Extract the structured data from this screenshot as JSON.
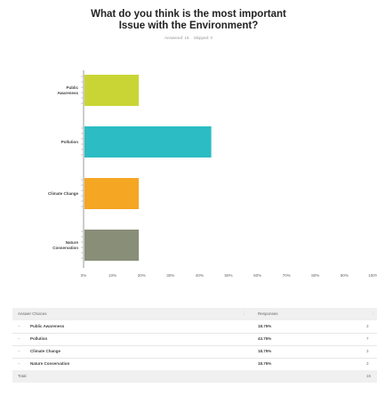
{
  "question": {
    "title_line1": "What do you think is the most important",
    "title_line2": "Issue with the Environment?",
    "answered": "Answered: 16",
    "skipped": "Skipped: 0"
  },
  "chart_data": {
    "type": "bar",
    "orientation": "horizontal",
    "title": "What do you think is the most important Issue with the Environment?",
    "categories": [
      "Public Awareness",
      "Pollution",
      "Climate Change",
      "Nature Conservation"
    ],
    "category_label_lines": [
      [
        "Public",
        "Awareness"
      ],
      [
        "Pollution"
      ],
      [
        "Climate Change"
      ],
      [
        "Nature",
        "Conservation"
      ]
    ],
    "values": [
      18.75,
      43.75,
      18.75,
      18.75
    ],
    "colors": [
      "#c9d534",
      "#2bbcc4",
      "#f5a623",
      "#888e78"
    ],
    "xlim": [
      0,
      100
    ],
    "xticks": [
      "0%",
      "10%",
      "20%",
      "30%",
      "40%",
      "50%",
      "60%",
      "70%",
      "80%",
      "90%",
      "100%"
    ],
    "grid": false
  },
  "table": {
    "header_choice": "Answer Choices",
    "header_responses": "Responses",
    "rows": [
      {
        "label": "Public Awareness",
        "pct": "18.75%",
        "count": "3"
      },
      {
        "label": "Pollution",
        "pct": "43.75%",
        "count": "7"
      },
      {
        "label": "Climate Change",
        "pct": "18.75%",
        "count": "3"
      },
      {
        "label": "Nature Conservation",
        "pct": "18.75%",
        "count": "3"
      }
    ],
    "total_label": "Total",
    "total_count": "16"
  }
}
